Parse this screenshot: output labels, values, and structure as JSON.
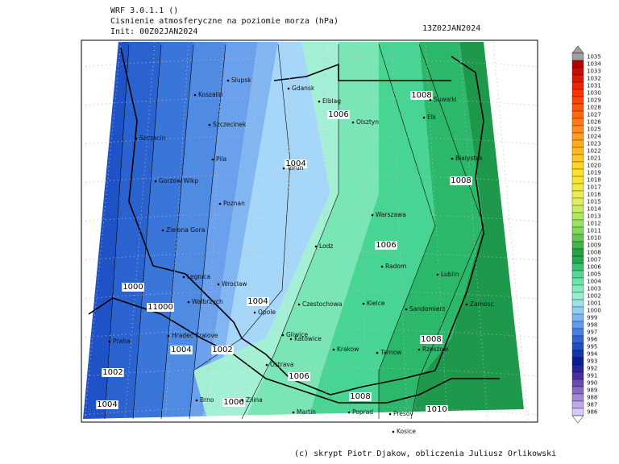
{
  "header": {
    "model": "WRF 3.0.1.1 ()",
    "title": "Cisnienie atmosferyczne na poziomie morza (hPa)",
    "init": "Init: 00Z02JAN2024",
    "valid": "13Z02JAN2024"
  },
  "isobar_labels": [
    "1004",
    "1006",
    "1008",
    "1008",
    "1006",
    "1000",
    "11000",
    "1004",
    "1004",
    "1002",
    "1002",
    "1006",
    "1008",
    "1008",
    "1004",
    "1006",
    "1010"
  ],
  "cities": [
    "Slupsk",
    "Gdansk",
    "Koszalin",
    "Elblag",
    "Suwalki",
    "Elk",
    "Olsztyn",
    "Szczecinek",
    "Szczecin",
    "Bialystok",
    "Pila",
    "Torun",
    "Gorzow Wlkp",
    "Poznan",
    "Warszawa",
    "Zielona Gora",
    "Lodz",
    "Radom",
    "Lublin",
    "Legnica",
    "Wroclaw",
    "Walbrzych",
    "Czestochowa",
    "Kielce",
    "Zamosc",
    "Opole",
    "Sandomierz",
    "Hradec Kralove",
    "Gliwice",
    "Katowice",
    "Praha",
    "Krakow",
    "Tarnow",
    "Rzeszow",
    "Ostrava",
    "Brno",
    "Zilina",
    "Poprad",
    "Presov",
    "Martin",
    "Kosice"
  ],
  "colorbar": {
    "levels": [
      1035,
      1034,
      1033,
      1032,
      1031,
      1030,
      1029,
      1028,
      1027,
      1026,
      1025,
      1024,
      1023,
      1022,
      1021,
      1020,
      1019,
      1018,
      1017,
      1016,
      1015,
      1014,
      1013,
      1012,
      1011,
      1010,
      1009,
      1008,
      1007,
      1006,
      1005,
      1004,
      1003,
      1002,
      1001,
      1000,
      999,
      998,
      997,
      996,
      995,
      994,
      993,
      992,
      991,
      990,
      989,
      988,
      987,
      986
    ]
  },
  "footer": "(c) skrypt Piotr Djakow, obliczenia Juliusz Orlikowski"
}
